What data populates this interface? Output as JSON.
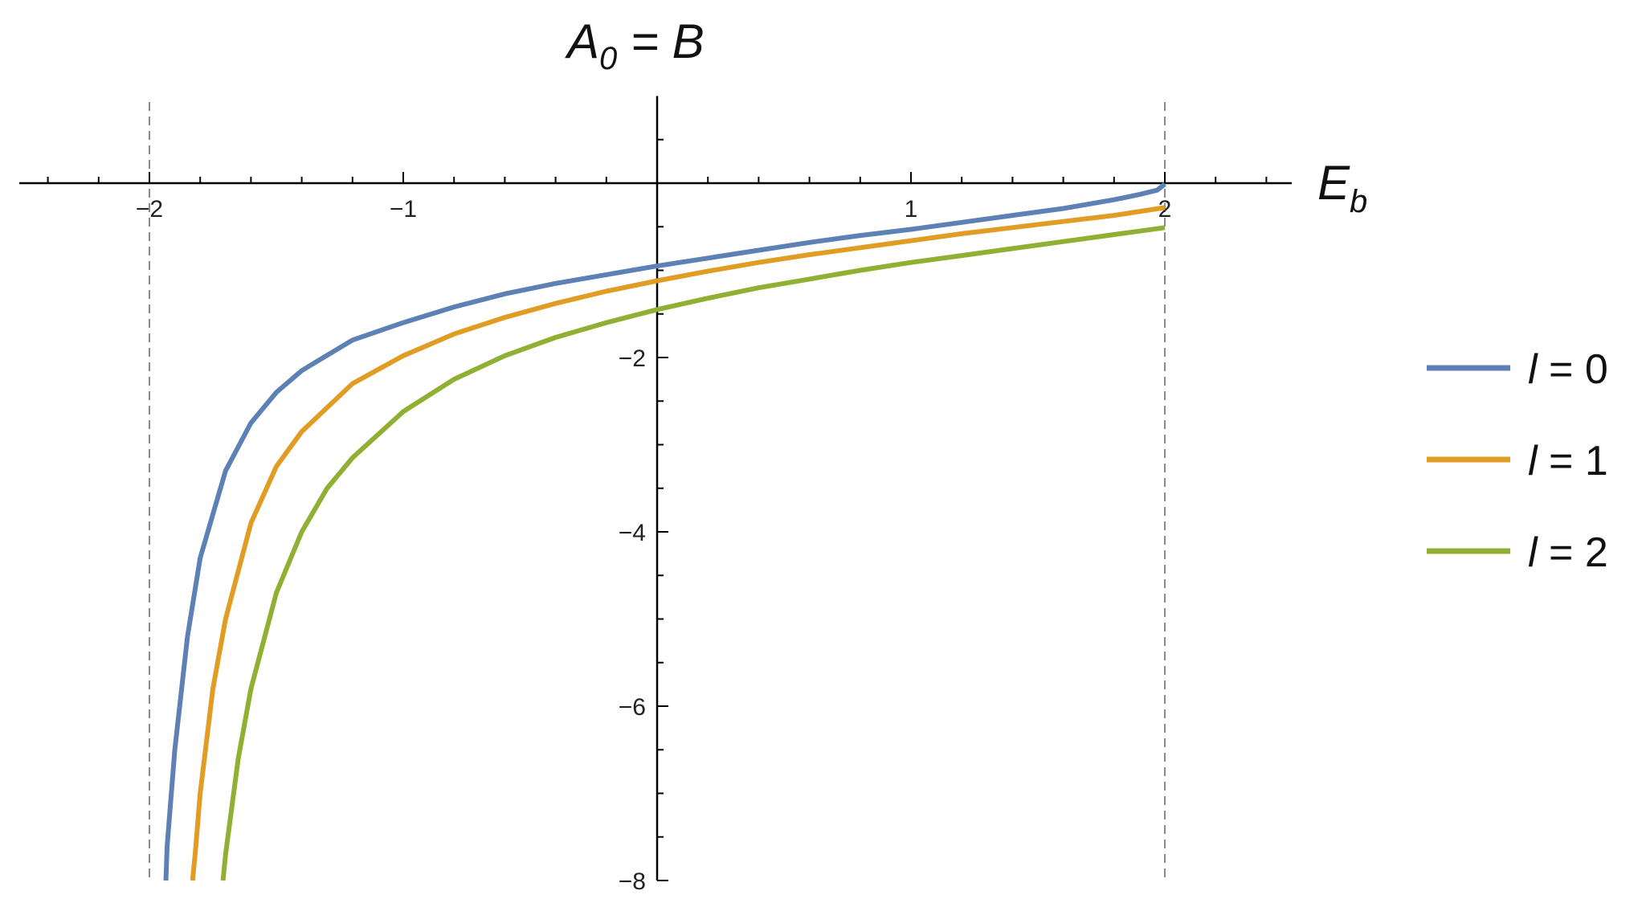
{
  "chart_data": {
    "type": "line",
    "title": "",
    "xlabel": "E",
    "xlabel_sub": "b",
    "ylabel": "A",
    "ylabel_sub": "0",
    "ylabel_suffix": " = B",
    "xlim": [
      -2.5,
      2.5
    ],
    "ylim": [
      -8,
      1
    ],
    "x_ticks": [
      -2,
      -1,
      1,
      2
    ],
    "x_tick_labels": [
      "−2",
      "−1",
      "1",
      "2"
    ],
    "y_ticks": [
      -2,
      -4,
      -6,
      -8
    ],
    "y_tick_labels": [
      "−2",
      "−4",
      "−6",
      "−8"
    ],
    "vertical_reference_lines": [
      -2,
      2
    ],
    "grid": false,
    "legend_position": "right",
    "series": [
      {
        "name": "l = 0",
        "legend_italic": "l",
        "legend_rest": " = 0",
        "color": "#5e81b5",
        "x": [
          -1.935,
          -1.93,
          -1.9,
          -1.85,
          -1.8,
          -1.7,
          -1.6,
          -1.5,
          -1.4,
          -1.2,
          -1.0,
          -0.8,
          -0.6,
          -0.4,
          -0.2,
          0.0,
          0.2,
          0.4,
          0.6,
          0.8,
          1.0,
          1.2,
          1.4,
          1.6,
          1.8,
          1.9,
          1.97,
          2.0
        ],
        "y": [
          -8.0,
          -7.6,
          -6.5,
          -5.2,
          -4.3,
          -3.3,
          -2.75,
          -2.4,
          -2.15,
          -1.8,
          -1.6,
          -1.42,
          -1.27,
          -1.15,
          -1.05,
          -0.95,
          -0.86,
          -0.77,
          -0.68,
          -0.6,
          -0.53,
          -0.45,
          -0.37,
          -0.29,
          -0.19,
          -0.13,
          -0.08,
          -0.01
        ]
      },
      {
        "name": "l = 1",
        "legend_italic": "l",
        "legend_rest": " = 1",
        "color": "#e19c24",
        "x": [
          -1.83,
          -1.82,
          -1.8,
          -1.75,
          -1.7,
          -1.6,
          -1.5,
          -1.4,
          -1.2,
          -1.0,
          -0.8,
          -0.6,
          -0.4,
          -0.2,
          0.0,
          0.2,
          0.4,
          0.6,
          0.8,
          1.0,
          1.2,
          1.4,
          1.6,
          1.8,
          2.0
        ],
        "y": [
          -8.0,
          -7.7,
          -7.0,
          -5.8,
          -5.0,
          -3.9,
          -3.25,
          -2.85,
          -2.3,
          -1.98,
          -1.73,
          -1.54,
          -1.38,
          -1.24,
          -1.12,
          -1.01,
          -0.91,
          -0.82,
          -0.74,
          -0.66,
          -0.58,
          -0.51,
          -0.44,
          -0.37,
          -0.28
        ]
      },
      {
        "name": "l = 2",
        "legend_italic": "l",
        "legend_rest": " = 2",
        "color": "#8fb032",
        "x": [
          -1.71,
          -1.7,
          -1.65,
          -1.6,
          -1.5,
          -1.4,
          -1.3,
          -1.2,
          -1.0,
          -0.8,
          -0.6,
          -0.4,
          -0.2,
          0.0,
          0.2,
          0.4,
          0.6,
          0.8,
          1.0,
          1.2,
          1.4,
          1.6,
          1.8,
          2.0
        ],
        "y": [
          -8.0,
          -7.7,
          -6.6,
          -5.8,
          -4.7,
          -4.0,
          -3.5,
          -3.15,
          -2.62,
          -2.25,
          -1.98,
          -1.77,
          -1.6,
          -1.45,
          -1.32,
          -1.2,
          -1.1,
          -1.0,
          -0.91,
          -0.83,
          -0.75,
          -0.67,
          -0.59,
          -0.51
        ]
      }
    ]
  }
}
